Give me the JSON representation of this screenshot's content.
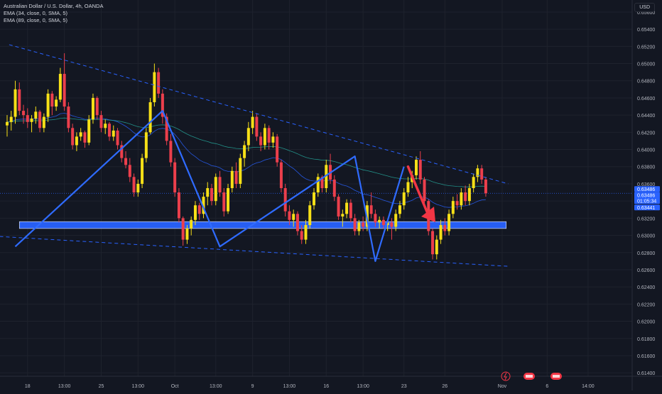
{
  "header": {
    "title": "Australian Dollar / U.S. Dollar, 4h, OANDA",
    "indicators": [
      "EMA (34, close, 0, SMA, 5)",
      "EMA (89, close, 0, SMA, 5)"
    ],
    "currency": "USD"
  },
  "price_labels": {
    "current": "0.63486",
    "timer": "01:05:34",
    "upper": "0.63486",
    "lower": "0.63441"
  },
  "icons": [
    "flash-icon",
    "event-flag-icon",
    "event-flag-icon"
  ],
  "colors": {
    "background": "#131722",
    "bull": "#f7e017",
    "bear": "#ec3f4c",
    "accent": "#2962ff",
    "ema34": "#2962ff",
    "ema89": "#26a69a"
  },
  "chart_data": {
    "type": "candlestick",
    "title": "Australian Dollar / U.S. Dollar, 4h, OANDA",
    "ylim": [
      0.6136,
      0.6574
    ],
    "y_ticks": [
      "0.65600",
      "0.65400",
      "0.65200",
      "0.65000",
      "0.64800",
      "0.64600",
      "0.64400",
      "0.64200",
      "0.64000",
      "0.63800",
      "0.63600",
      "0.63400",
      "0.63200",
      "0.63000",
      "0.62800",
      "0.62600",
      "0.62400",
      "0.62200",
      "0.62000",
      "0.61800",
      "0.61600",
      "0.61400"
    ],
    "x_ticks": [
      "18",
      "13:00",
      "25",
      "13:00",
      "Oct",
      "13:00",
      "9",
      "13:00",
      "16",
      "13:00",
      "23",
      "26",
      "Nov",
      "6",
      "14:00"
    ],
    "x_tick_bar_index": [
      5,
      14,
      23,
      32,
      41,
      51,
      60,
      69,
      78,
      87,
      97,
      107,
      121,
      132,
      142
    ],
    "bars_total": 156,
    "ohlc": [
      [
        0.6428,
        0.644,
        0.6415,
        0.6432
      ],
      [
        0.6432,
        0.6445,
        0.6422,
        0.6438
      ],
      [
        0.6438,
        0.648,
        0.643,
        0.647
      ],
      [
        0.647,
        0.6478,
        0.644,
        0.6445
      ],
      [
        0.6445,
        0.6452,
        0.643,
        0.644
      ],
      [
        0.644,
        0.6448,
        0.6425,
        0.6432
      ],
      [
        0.6432,
        0.644,
        0.642,
        0.6436
      ],
      [
        0.6436,
        0.645,
        0.643,
        0.6444
      ],
      [
        0.6444,
        0.6446,
        0.642,
        0.6425
      ],
      [
        0.6425,
        0.6442,
        0.642,
        0.6438
      ],
      [
        0.6438,
        0.647,
        0.6432,
        0.6465
      ],
      [
        0.6465,
        0.6468,
        0.644,
        0.645
      ],
      [
        0.645,
        0.6462,
        0.6445,
        0.6458
      ],
      [
        0.6458,
        0.6495,
        0.6455,
        0.6488
      ],
      [
        0.6488,
        0.6512,
        0.6445,
        0.645
      ],
      [
        0.645,
        0.6455,
        0.642,
        0.6425
      ],
      [
        0.6425,
        0.643,
        0.64,
        0.6405
      ],
      [
        0.6405,
        0.642,
        0.6398,
        0.6415
      ],
      [
        0.6415,
        0.6425,
        0.641,
        0.642
      ],
      [
        0.642,
        0.6422,
        0.6402,
        0.6408
      ],
      [
        0.6408,
        0.644,
        0.6405,
        0.6435
      ],
      [
        0.6435,
        0.6465,
        0.643,
        0.646
      ],
      [
        0.646,
        0.6462,
        0.6435,
        0.644
      ],
      [
        0.644,
        0.6445,
        0.642,
        0.6425
      ],
      [
        0.6425,
        0.6435,
        0.6418,
        0.643
      ],
      [
        0.643,
        0.6432,
        0.641,
        0.6415
      ],
      [
        0.6415,
        0.6428,
        0.641,
        0.6422
      ],
      [
        0.6422,
        0.6425,
        0.64,
        0.6405
      ],
      [
        0.6405,
        0.641,
        0.6385,
        0.639
      ],
      [
        0.639,
        0.6398,
        0.6378,
        0.6382
      ],
      [
        0.6382,
        0.639,
        0.6362,
        0.6368
      ],
      [
        0.6368,
        0.6372,
        0.6345,
        0.635
      ],
      [
        0.635,
        0.6365,
        0.6345,
        0.636
      ],
      [
        0.636,
        0.6395,
        0.6355,
        0.639
      ],
      [
        0.639,
        0.6425,
        0.6385,
        0.642
      ],
      [
        0.642,
        0.646,
        0.6418,
        0.6455
      ],
      [
        0.6455,
        0.65,
        0.645,
        0.649
      ],
      [
        0.649,
        0.6495,
        0.646,
        0.6465
      ],
      [
        0.6465,
        0.647,
        0.643,
        0.6438
      ],
      [
        0.6438,
        0.6442,
        0.6405,
        0.641
      ],
      [
        0.641,
        0.6418,
        0.638,
        0.6385
      ],
      [
        0.6385,
        0.639,
        0.6345,
        0.635
      ],
      [
        0.635,
        0.6355,
        0.6315,
        0.632
      ],
      [
        0.632,
        0.6322,
        0.6288,
        0.6295
      ],
      [
        0.6295,
        0.6312,
        0.629,
        0.6308
      ],
      [
        0.6308,
        0.6322,
        0.63,
        0.6318
      ],
      [
        0.6318,
        0.634,
        0.6312,
        0.6335
      ],
      [
        0.6335,
        0.6338,
        0.6318,
        0.6325
      ],
      [
        0.6325,
        0.635,
        0.632,
        0.6345
      ],
      [
        0.6345,
        0.6362,
        0.6335,
        0.6355
      ],
      [
        0.6355,
        0.636,
        0.6335,
        0.634
      ],
      [
        0.634,
        0.6372,
        0.6335,
        0.6368
      ],
      [
        0.6368,
        0.6375,
        0.6345,
        0.635
      ],
      [
        0.635,
        0.6355,
        0.6322,
        0.6328
      ],
      [
        0.6328,
        0.636,
        0.6325,
        0.6355
      ],
      [
        0.6355,
        0.638,
        0.635,
        0.6375
      ],
      [
        0.6375,
        0.6385,
        0.6355,
        0.636
      ],
      [
        0.636,
        0.6395,
        0.6355,
        0.639
      ],
      [
        0.639,
        0.641,
        0.638,
        0.6405
      ],
      [
        0.6405,
        0.6432,
        0.6398,
        0.6425
      ],
      [
        0.6425,
        0.6445,
        0.6418,
        0.6438
      ],
      [
        0.6438,
        0.6442,
        0.641,
        0.6415
      ],
      [
        0.6415,
        0.642,
        0.6398,
        0.6405
      ],
      [
        0.6405,
        0.643,
        0.64,
        0.6425
      ],
      [
        0.6425,
        0.6428,
        0.64,
        0.6408
      ],
      [
        0.6408,
        0.642,
        0.6402,
        0.6415
      ],
      [
        0.6415,
        0.6418,
        0.638,
        0.6385
      ],
      [
        0.6385,
        0.6388,
        0.635,
        0.6355
      ],
      [
        0.6355,
        0.636,
        0.6322,
        0.6328
      ],
      [
        0.6328,
        0.6335,
        0.6312,
        0.6318
      ],
      [
        0.6318,
        0.633,
        0.631,
        0.6325
      ],
      [
        0.6325,
        0.6328,
        0.63,
        0.6305
      ],
      [
        0.6305,
        0.6312,
        0.629,
        0.6295
      ],
      [
        0.6295,
        0.6318,
        0.629,
        0.6312
      ],
      [
        0.6312,
        0.634,
        0.6308,
        0.6335
      ],
      [
        0.6335,
        0.6355,
        0.633,
        0.635
      ],
      [
        0.635,
        0.6372,
        0.6345,
        0.6368
      ],
      [
        0.6368,
        0.637,
        0.635,
        0.6355
      ],
      [
        0.6355,
        0.6388,
        0.635,
        0.6382
      ],
      [
        0.6382,
        0.6395,
        0.636,
        0.6365
      ],
      [
        0.6365,
        0.637,
        0.634,
        0.6345
      ],
      [
        0.6345,
        0.6348,
        0.6318,
        0.6322
      ],
      [
        0.6322,
        0.633,
        0.631,
        0.6325
      ],
      [
        0.6325,
        0.6342,
        0.632,
        0.6338
      ],
      [
        0.6338,
        0.6342,
        0.6315,
        0.632
      ],
      [
        0.632,
        0.6325,
        0.63,
        0.6305
      ],
      [
        0.6305,
        0.6318,
        0.63,
        0.6315
      ],
      [
        0.6315,
        0.6322,
        0.6305,
        0.631
      ],
      [
        0.631,
        0.634,
        0.6305,
        0.6335
      ],
      [
        0.6335,
        0.635,
        0.632,
        0.6325
      ],
      [
        0.6325,
        0.633,
        0.631,
        0.6315
      ],
      [
        0.6315,
        0.6322,
        0.6308,
        0.6318
      ],
      [
        0.6318,
        0.6322,
        0.6308,
        0.6312
      ],
      [
        0.6312,
        0.6318,
        0.6305,
        0.6315
      ],
      [
        0.6315,
        0.632,
        0.6295,
        0.631
      ],
      [
        0.631,
        0.633,
        0.6305,
        0.6325
      ],
      [
        0.6325,
        0.634,
        0.632,
        0.6335
      ],
      [
        0.6335,
        0.6355,
        0.633,
        0.635
      ],
      [
        0.635,
        0.6368,
        0.6345,
        0.6362
      ],
      [
        0.6362,
        0.6375,
        0.6355,
        0.637
      ],
      [
        0.637,
        0.6392,
        0.6365,
        0.6388
      ],
      [
        0.6388,
        0.6398,
        0.636,
        0.6365
      ],
      [
        0.6365,
        0.6368,
        0.6335,
        0.634
      ],
      [
        0.634,
        0.6342,
        0.63,
        0.6305
      ],
      [
        0.6305,
        0.6308,
        0.6272,
        0.6278
      ],
      [
        0.6278,
        0.63,
        0.6272,
        0.6295
      ],
      [
        0.6295,
        0.6318,
        0.629,
        0.6312
      ],
      [
        0.6312,
        0.632,
        0.63,
        0.6305
      ],
      [
        0.6305,
        0.633,
        0.63,
        0.6325
      ],
      [
        0.6325,
        0.6345,
        0.632,
        0.634
      ],
      [
        0.634,
        0.6348,
        0.633,
        0.6335
      ],
      [
        0.6335,
        0.6355,
        0.633,
        0.635
      ],
      [
        0.635,
        0.6358,
        0.6335,
        0.634
      ],
      [
        0.634,
        0.636,
        0.6335,
        0.6355
      ],
      [
        0.6355,
        0.6372,
        0.635,
        0.6368
      ],
      [
        0.6368,
        0.6382,
        0.6362,
        0.6378
      ],
      [
        0.6378,
        0.6382,
        0.636,
        0.6365
      ],
      [
        0.6365,
        0.6368,
        0.6345,
        0.6349
      ]
    ]
  },
  "annotations": {
    "resistance_line": [
      [
        0.5,
        0.6522
      ],
      [
        122.5,
        0.636
      ]
    ],
    "support_line": [
      [
        -6.5,
        0.63
      ],
      [
        122.5,
        0.6264
      ]
    ],
    "support_zone": [
      [
        3,
        0.6308
      ],
      [
        122,
        0.6316
      ]
    ],
    "pattern_points": [
      [
        2,
        0.6287
      ],
      [
        38,
        0.6445
      ],
      [
        52,
        0.6287
      ],
      [
        85,
        0.6392
      ],
      [
        90,
        0.627
      ],
      [
        97,
        0.638
      ]
    ],
    "arrow": [
      [
        98,
        0.638
      ],
      [
        104,
        0.6317
      ]
    ]
  }
}
